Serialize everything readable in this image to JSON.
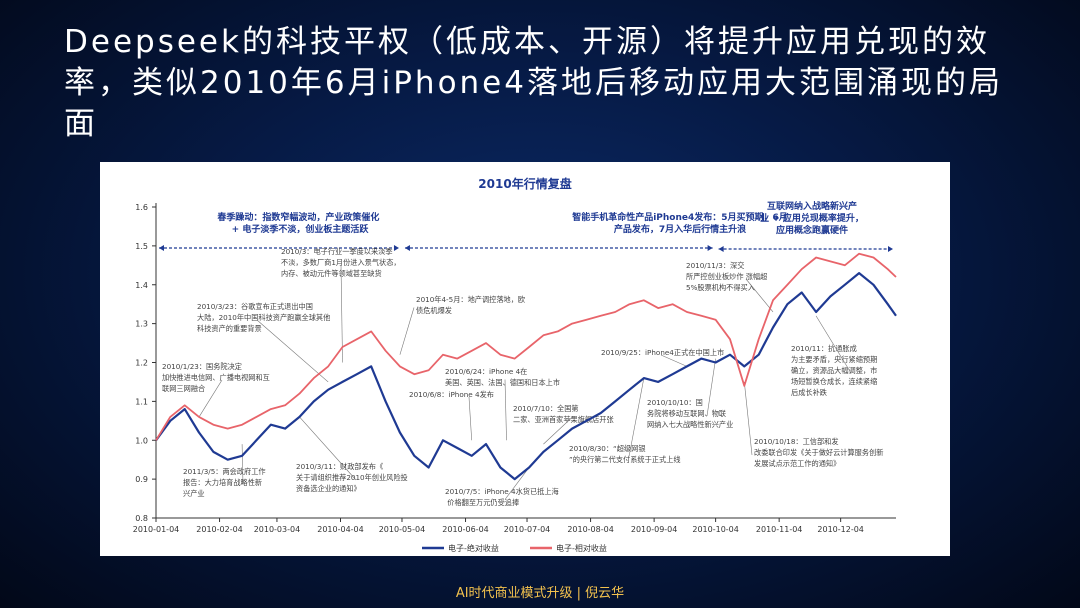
{
  "slide": {
    "title": "Deepseek的科技平权（低成本、开源）将提升应用兑现的效率，类似2010年6月iPhone4落地后移动应用大范围涌现的局面",
    "footer": "AI时代商业模式升级 | 倪云华"
  },
  "chart_data": {
    "type": "line",
    "title": "2010年行情复盘",
    "xlabel": "",
    "ylabel": "",
    "ylim": [
      0.8,
      1.6
    ],
    "yticks": [
      "0.8",
      "0.9",
      "1.0",
      "1.1",
      "1.2",
      "1.3",
      "1.4",
      "1.5",
      "1.6"
    ],
    "xtick_labels": [
      "2010-01-04",
      "2010-02-04",
      "2010-03-04",
      "2010-04-04",
      "2010-05-04",
      "2010-06-04",
      "2010-07-04",
      "2010-08-04",
      "2010-09-04",
      "2010-10-04",
      "2010-11-04",
      "2010-12-04"
    ],
    "grid": false,
    "legend": "bottom",
    "colors": {
      "absolute": "#1f3a93",
      "relative": "#e8646a",
      "annotation": "#1f3a93"
    },
    "series": [
      {
        "name": "电子-绝对收益",
        "x": [
          "2010-01-04",
          "2010-01-11",
          "2010-01-18",
          "2010-01-25",
          "2010-02-01",
          "2010-02-08",
          "2010-02-15",
          "2010-02-22",
          "2010-03-01",
          "2010-03-08",
          "2010-03-15",
          "2010-03-22",
          "2010-03-29",
          "2010-04-05",
          "2010-04-12",
          "2010-04-19",
          "2010-04-26",
          "2010-05-03",
          "2010-05-10",
          "2010-05-17",
          "2010-05-24",
          "2010-05-31",
          "2010-06-07",
          "2010-06-14",
          "2010-06-21",
          "2010-06-28",
          "2010-07-05",
          "2010-07-12",
          "2010-07-19",
          "2010-07-26",
          "2010-08-02",
          "2010-08-09",
          "2010-08-16",
          "2010-08-23",
          "2010-08-30",
          "2010-09-06",
          "2010-09-13",
          "2010-09-20",
          "2010-09-27",
          "2010-10-04",
          "2010-10-11",
          "2010-10-18",
          "2010-10-25",
          "2010-11-01",
          "2010-11-08",
          "2010-11-15",
          "2010-11-22",
          "2010-11-29",
          "2010-12-06",
          "2010-12-13",
          "2010-12-20",
          "2010-12-27",
          "2010-12-31"
        ],
        "values": [
          1.0,
          1.05,
          1.08,
          1.02,
          0.97,
          0.95,
          0.96,
          1.0,
          1.04,
          1.03,
          1.06,
          1.1,
          1.13,
          1.15,
          1.17,
          1.19,
          1.1,
          1.02,
          0.96,
          0.93,
          1.0,
          0.98,
          0.96,
          0.99,
          0.93,
          0.9,
          0.93,
          0.97,
          1.0,
          1.03,
          1.05,
          1.07,
          1.1,
          1.13,
          1.16,
          1.15,
          1.17,
          1.19,
          1.21,
          1.2,
          1.22,
          1.19,
          1.22,
          1.29,
          1.35,
          1.38,
          1.33,
          1.37,
          1.4,
          1.43,
          1.4,
          1.35,
          1.32
        ]
      },
      {
        "name": "电子-相对收益",
        "x": [
          "2010-01-04",
          "2010-01-11",
          "2010-01-18",
          "2010-01-25",
          "2010-02-01",
          "2010-02-08",
          "2010-02-15",
          "2010-02-22",
          "2010-03-01",
          "2010-03-08",
          "2010-03-15",
          "2010-03-22",
          "2010-03-29",
          "2010-04-05",
          "2010-04-12",
          "2010-04-19",
          "2010-04-26",
          "2010-05-03",
          "2010-05-10",
          "2010-05-17",
          "2010-05-24",
          "2010-05-31",
          "2010-06-07",
          "2010-06-14",
          "2010-06-21",
          "2010-06-28",
          "2010-07-05",
          "2010-07-12",
          "2010-07-19",
          "2010-07-26",
          "2010-08-02",
          "2010-08-09",
          "2010-08-16",
          "2010-08-23",
          "2010-08-30",
          "2010-09-06",
          "2010-09-13",
          "2010-09-20",
          "2010-09-27",
          "2010-10-04",
          "2010-10-11",
          "2010-10-18",
          "2010-10-25",
          "2010-11-01",
          "2010-11-08",
          "2010-11-15",
          "2010-11-22",
          "2010-11-29",
          "2010-12-06",
          "2010-12-13",
          "2010-12-20",
          "2010-12-27",
          "2010-12-31"
        ],
        "values": [
          1.0,
          1.06,
          1.09,
          1.06,
          1.04,
          1.03,
          1.04,
          1.06,
          1.08,
          1.09,
          1.12,
          1.16,
          1.19,
          1.24,
          1.26,
          1.28,
          1.23,
          1.19,
          1.17,
          1.18,
          1.22,
          1.21,
          1.23,
          1.25,
          1.22,
          1.21,
          1.24,
          1.27,
          1.28,
          1.3,
          1.31,
          1.32,
          1.33,
          1.35,
          1.36,
          1.34,
          1.35,
          1.33,
          1.32,
          1.31,
          1.26,
          1.14,
          1.26,
          1.36,
          1.4,
          1.44,
          1.47,
          1.46,
          1.45,
          1.48,
          1.47,
          1.44,
          1.42
        ]
      }
    ],
    "period_annotations": [
      {
        "text": "春季躁动：指数窄幅波动，产业政策催化 + 电子淡季不淡，创业板主题活跃",
        "from": "2010-01-04",
        "to": "2010-05-04"
      },
      {
        "text": "智能手机革命性产品iPhone4发布：5月买预期，6月产品发布，7月入华后行情主升浪",
        "from": "2010-05-04",
        "to": "2010-10-04"
      },
      {
        "text": "互联网纳入战略新兴产业 + 应用兑现概率提升，应用概念跑赢硬件",
        "from": "2010-10-04",
        "to": "2010-12-31"
      }
    ],
    "annotations": [
      "2010/1/23：国务院决定加快推进电信网、广播电视网和互联网三网融合",
      "2010/3/23：谷歌宣布正式退出中国大陆，2010年中国科技资产跑赢全球其他科技资产的重要背景",
      "2010/3：电子行业一季度以来淡季不淡，多数厂商1月份进入景气状态，内存、被动元件等领域甚至缺货",
      "2011/3/5：两会政府工作报告：大力培育战略性新兴产业",
      "2010/3/11：财政部发布《关于请组织推荐2010年创业风险投资备选企业的通知》",
      "2010年4-5月：地产调控落地，欧债危机爆发",
      "2010/6/8：iPhone 4发布",
      "2010/6/24：iPhone 4在美国、英国、法国、德国和日本上市",
      "2010/7/5：iPhone 4水货已抵上海 价格翻至万元仍受追捧",
      "2010/7/10：全国第二家、亚洲首家苹果旗舰店开张",
      "2010/8/30：“超级网银”的央行第二代支付系统于正式上线",
      "2010/9/25：iPhone4正式在中国上市",
      "2010/10/10：国务院将移动互联网、物联网纳入七大战略性新兴产业",
      "2010/11/3：深交所严控创业板炒作 涨幅超5%股票机构不得买入",
      "2010/11：抗通胀成为主要矛盾，央行紧缩预期确立，资源品大幅调整，市场短暂换仓成长，连续紧缩后成长补跌",
      "2010/10/18：工信部和发改委联合印发《关于做好云计算服务创新发展试点示范工作的通知》"
    ]
  }
}
